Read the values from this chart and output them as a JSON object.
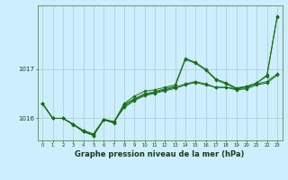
{
  "background_color": "#cceeff",
  "plot_bg_color": "#cceeff",
  "grid_color": "#aacccc",
  "line_color": "#1a6b1a",
  "marker_color": "#1a6b1a",
  "xlabel": "Graphe pression niveau de la mer (hPa)",
  "xlabel_fontsize": 6,
  "ylim": [
    1015.55,
    1018.3
  ],
  "xlim": [
    -0.5,
    23.5
  ],
  "yticks": [
    1016,
    1017
  ],
  "xticks": [
    0,
    1,
    2,
    3,
    4,
    5,
    6,
    7,
    8,
    9,
    10,
    11,
    12,
    13,
    14,
    15,
    16,
    17,
    18,
    19,
    20,
    21,
    22,
    23
  ],
  "line1": [
    1016.3,
    1016.0,
    1016.0,
    1015.88,
    1015.75,
    1015.68,
    1015.98,
    1015.93,
    1016.22,
    1016.36,
    1016.46,
    1016.51,
    1016.56,
    1016.61,
    1016.68,
    1016.73,
    1016.68,
    1016.63,
    1016.63,
    1016.6,
    1016.65,
    1016.7,
    1016.75,
    1016.9
  ],
  "line2": [
    1016.3,
    1016.0,
    1016.0,
    1015.88,
    1015.75,
    1015.68,
    1015.98,
    1015.93,
    1016.25,
    1016.38,
    1016.48,
    1016.53,
    1016.58,
    1016.63,
    1016.7,
    1016.75,
    1016.7,
    1016.63,
    1016.63,
    1016.58,
    1016.6,
    1016.68,
    1016.72,
    1016.88
  ],
  "line3": [
    1016.3,
    1016.0,
    1016.0,
    1015.88,
    1015.73,
    1015.65,
    1015.97,
    1015.92,
    1016.3,
    1016.45,
    1016.55,
    1016.58,
    1016.63,
    1016.68,
    1017.22,
    1017.14,
    1017.0,
    1016.8,
    1016.72,
    1016.62,
    1016.65,
    1016.72,
    1016.88,
    1018.08
  ],
  "line4": [
    1016.3,
    1016.0,
    1016.0,
    1015.87,
    1015.73,
    1015.65,
    1015.97,
    1015.9,
    1016.28,
    1016.4,
    1016.5,
    1016.54,
    1016.6,
    1016.65,
    1017.2,
    1017.12,
    1016.98,
    1016.78,
    1016.7,
    1016.6,
    1016.62,
    1016.72,
    1016.86,
    1018.06
  ]
}
